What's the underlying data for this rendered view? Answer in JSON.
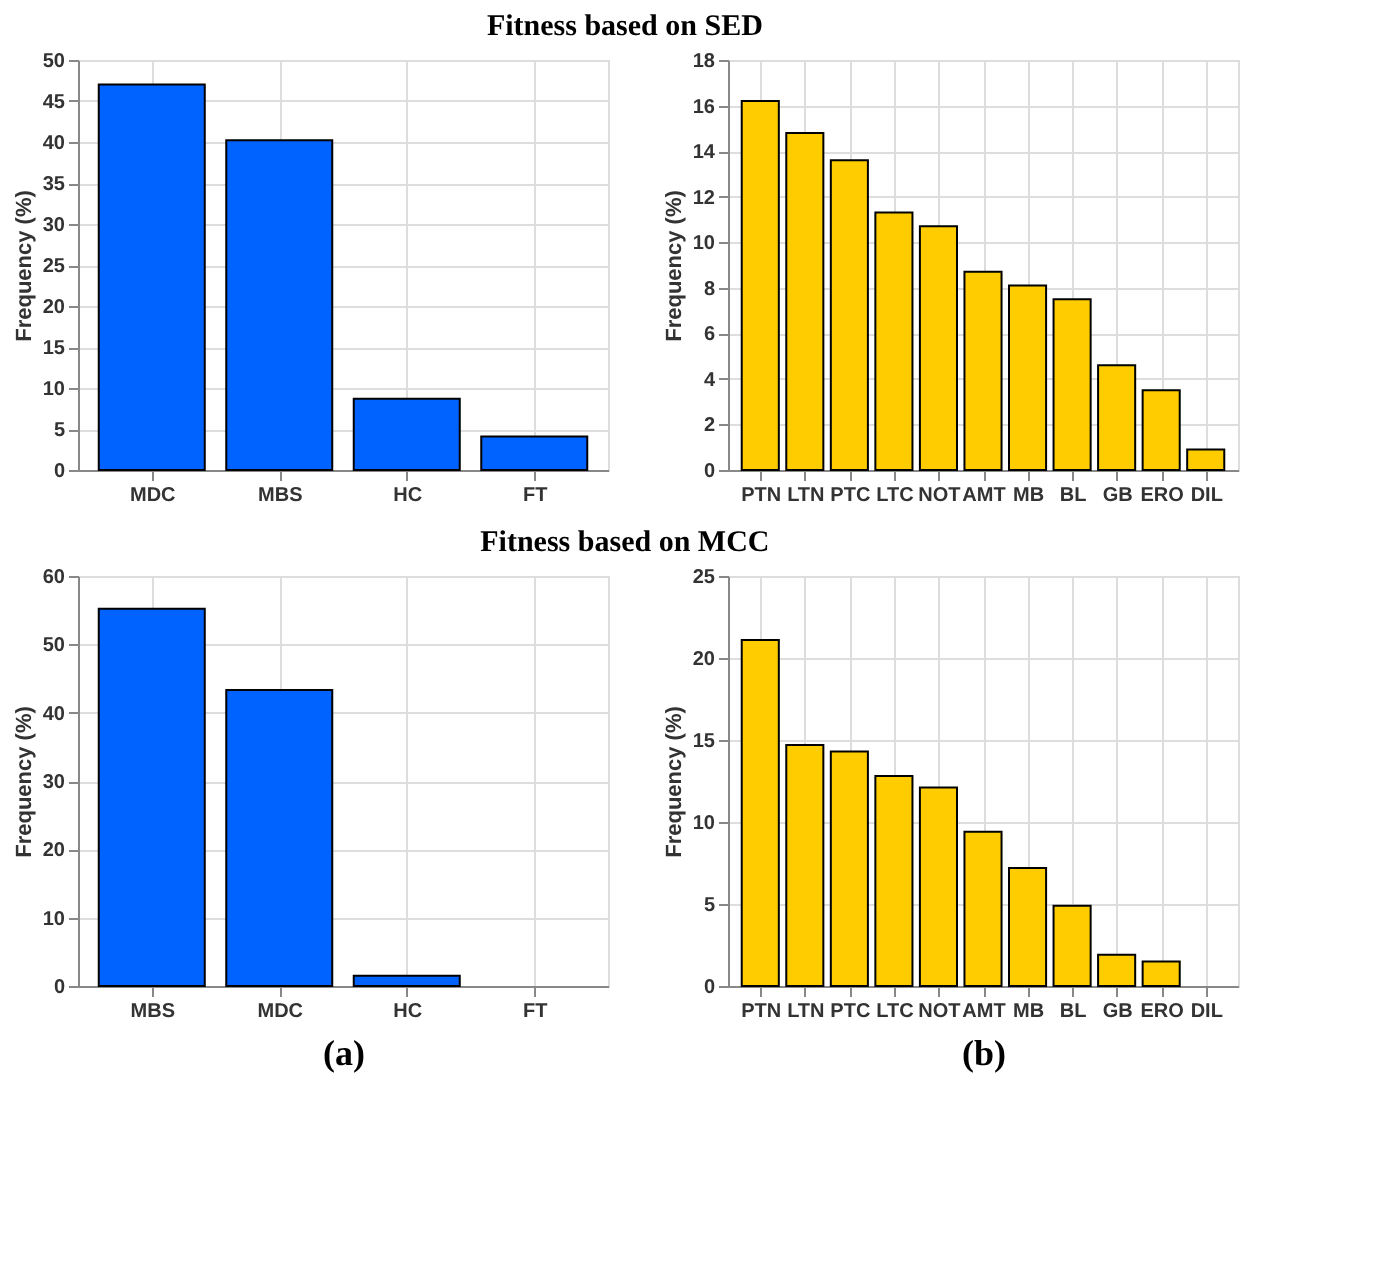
{
  "chart_data": [
    {
      "type": "bar",
      "title": "Fitness based on SED",
      "ylabel": "Frequency (%)",
      "categories": [
        "MDC",
        "MBS",
        "HC",
        "FT"
      ],
      "values": [
        47,
        40.2,
        8.7,
        4.1
      ],
      "color": "#0062ff",
      "ylim": [
        0,
        50
      ],
      "yticks": [
        0,
        5,
        10,
        15,
        20,
        25,
        30,
        35,
        40,
        45,
        50
      ],
      "grid": true
    },
    {
      "type": "bar",
      "ylabel": "Frequency (%)",
      "categories": [
        "PTN",
        "LTN",
        "PTC",
        "LTC",
        "NOT",
        "AMT",
        "MB",
        "BL",
        "GB",
        "ERO",
        "DIL"
      ],
      "values": [
        16.2,
        14.8,
        13.6,
        11.3,
        10.7,
        8.7,
        8.1,
        7.5,
        4.6,
        3.5,
        0.9
      ],
      "color": "#ffcc00",
      "ylim": [
        0,
        18
      ],
      "yticks": [
        0,
        2,
        4,
        6,
        8,
        10,
        12,
        14,
        16,
        18
      ],
      "grid": true
    },
    {
      "type": "bar",
      "title": "Fitness based on MCC",
      "xlabel": "(a)",
      "ylabel": "Frequency (%)",
      "categories": [
        "MBS",
        "MDC",
        "HC",
        "FT"
      ],
      "values": [
        55.2,
        43.3,
        1.5,
        0
      ],
      "color": "#0062ff",
      "ylim": [
        0,
        60
      ],
      "yticks": [
        0,
        10,
        20,
        30,
        40,
        50,
        60
      ],
      "grid": true
    },
    {
      "type": "bar",
      "xlabel": "(b)",
      "ylabel": "Frequency (%)",
      "categories": [
        "PTN",
        "LTN",
        "PTC",
        "LTC",
        "NOT",
        "AMT",
        "MB",
        "BL",
        "GB",
        "ERO",
        "DIL"
      ],
      "values": [
        21.1,
        14.7,
        14.3,
        12.8,
        12.1,
        9.4,
        7.2,
        4.9,
        1.9,
        1.5,
        0
      ],
      "color": "#ffcc00",
      "ylim": [
        0,
        25
      ],
      "yticks": [
        0,
        5,
        10,
        15,
        20,
        25
      ],
      "grid": true
    }
  ]
}
